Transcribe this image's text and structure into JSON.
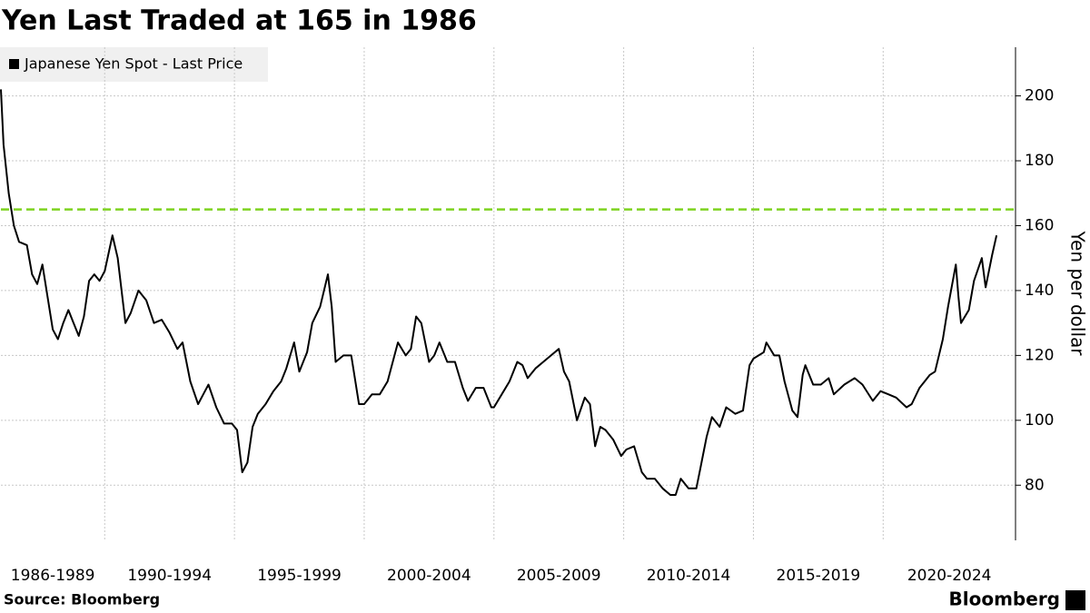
{
  "chart_data": {
    "type": "line",
    "title": "Yen Last Traded at 165 in 1986",
    "y_axis_label": "Yen per dollar",
    "source": "Source: Bloomberg",
    "brand": "Bloomberg",
    "categories": [
      "1986-1989",
      "1990-1994",
      "1995-1999",
      "2000-2004",
      "2005-2009",
      "2010-2014",
      "2015-2019",
      "2020-2024"
    ],
    "period_starts": [
      1986,
      1990,
      1995,
      2000,
      2005,
      2010,
      2015,
      2020
    ],
    "xlim": [
      1986,
      2025.1
    ],
    "ylim": [
      63,
      215
    ],
    "yticks": [
      80,
      100,
      120,
      140,
      160,
      180,
      200
    ],
    "grid": true,
    "reference_line": {
      "value": 165,
      "color": "#7ed321"
    },
    "x": [
      1986.0,
      1986.1,
      1986.3,
      1986.5,
      1986.7,
      1987.0,
      1987.2,
      1987.4,
      1987.6,
      1987.8,
      1988.0,
      1988.2,
      1988.4,
      1988.6,
      1988.8,
      1989.0,
      1989.2,
      1989.4,
      1989.6,
      1989.8,
      1990.0,
      1990.3,
      1990.5,
      1990.8,
      1991.0,
      1991.3,
      1991.6,
      1991.9,
      1992.2,
      1992.5,
      1992.8,
      1993.0,
      1993.3,
      1993.6,
      1993.8,
      1994.0,
      1994.3,
      1994.6,
      1994.9,
      1995.1,
      1995.3,
      1995.5,
      1995.7,
      1995.9,
      1996.2,
      1996.5,
      1996.8,
      1997.0,
      1997.3,
      1997.5,
      1997.8,
      1998.0,
      1998.3,
      1998.6,
      1998.75,
      1998.9,
      1999.2,
      1999.5,
      1999.8,
      2000.0,
      2000.3,
      2000.6,
      2000.9,
      2001.1,
      2001.3,
      2001.6,
      2001.8,
      2002.0,
      2002.2,
      2002.5,
      2002.7,
      2002.9,
      2003.2,
      2003.5,
      2003.8,
      2004.0,
      2004.3,
      2004.6,
      2004.9,
      2005.0,
      2005.3,
      2005.6,
      2005.9,
      2006.1,
      2006.3,
      2006.6,
      2006.9,
      2007.2,
      2007.5,
      2007.7,
      2007.9,
      2008.2,
      2008.5,
      2008.7,
      2008.9,
      2009.1,
      2009.3,
      2009.6,
      2009.9,
      2010.1,
      2010.4,
      2010.7,
      2010.9,
      2011.2,
      2011.5,
      2011.8,
      2012.0,
      2012.2,
      2012.5,
      2012.8,
      2012.95,
      2013.2,
      2013.4,
      2013.7,
      2013.95,
      2014.3,
      2014.6,
      2014.85,
      2015.0,
      2015.4,
      2015.5,
      2015.8,
      2016.0,
      2016.2,
      2016.5,
      2016.7,
      2016.9,
      2017.0,
      2017.3,
      2017.6,
      2017.9,
      2018.1,
      2018.5,
      2018.9,
      2019.2,
      2019.6,
      2019.9,
      2020.2,
      2020.5,
      2020.9,
      2021.1,
      2021.4,
      2021.8,
      2022.0,
      2022.3,
      2022.5,
      2022.8,
      2022.9,
      2023.0,
      2023.3,
      2023.5,
      2023.8,
      2023.95,
      2024.2,
      2024.37
    ],
    "series": [
      {
        "name": "Japanese Yen Spot - Last Price",
        "color": "#000000",
        "values": [
          202,
          185,
          170,
          160,
          155,
          154,
          145,
          142,
          148,
          138,
          128,
          125,
          130,
          134,
          130,
          126,
          132,
          143,
          145,
          143,
          146,
          157,
          150,
          130,
          133,
          140,
          137,
          130,
          131,
          127,
          122,
          124,
          112,
          105,
          108,
          111,
          104,
          99,
          99,
          97,
          84,
          87,
          98,
          102,
          105,
          109,
          112,
          116,
          124,
          115,
          121,
          130,
          135,
          145,
          135,
          118,
          120,
          120,
          105,
          105,
          108,
          108,
          112,
          118,
          124,
          120,
          122,
          132,
          130,
          118,
          120,
          124,
          118,
          118,
          110,
          106,
          110,
          110,
          104,
          104,
          108,
          112,
          118,
          117,
          113,
          116,
          118,
          120,
          122,
          115,
          112,
          100,
          107,
          105,
          92,
          98,
          97,
          94,
          89,
          91,
          92,
          84,
          82,
          82,
          79,
          77,
          77,
          82,
          79,
          79,
          85,
          95,
          101,
          98,
          104,
          102,
          103,
          117,
          119,
          121,
          124,
          120,
          120,
          112,
          103,
          101,
          114,
          117,
          111,
          111,
          113,
          108,
          111,
          113,
          111,
          106,
          109,
          108,
          107,
          104,
          105,
          110,
          114,
          115,
          125,
          135,
          148,
          138,
          130,
          134,
          143,
          150,
          141,
          151,
          157
        ]
      }
    ]
  }
}
